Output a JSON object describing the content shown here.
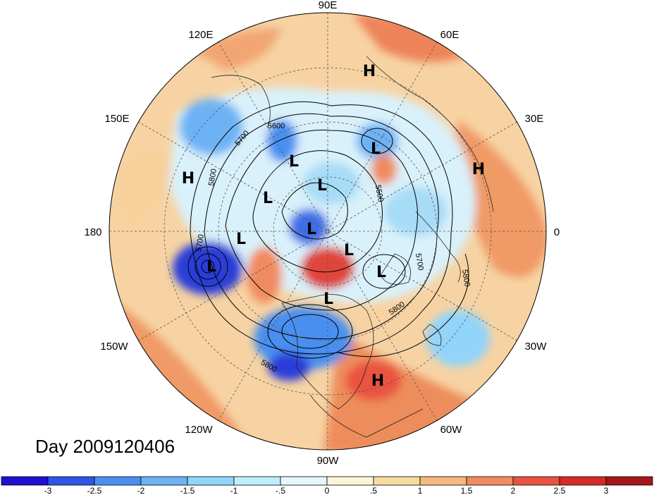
{
  "title": "Day 2009120406",
  "longitude_labels": [
    "90E",
    "60E",
    "30E",
    "0",
    "30W",
    "60W",
    "90W",
    "120W",
    "150W",
    "180",
    "150E",
    "120E"
  ],
  "pressure_centers": [
    "H",
    "H",
    "H",
    "H",
    "L",
    "L",
    "L",
    "L",
    "L",
    "L",
    "L",
    "L",
    "L",
    "L"
  ],
  "contour_labels": [
    "5600",
    "5700",
    "5800",
    "5500",
    "5700",
    "5800",
    "5800",
    "5700",
    "5800"
  ],
  "colorbar": {
    "ticks": [
      "-3",
      "-2.5",
      "-2",
      "-1.5",
      "-1",
      "-.5",
      "0",
      ".5",
      "1",
      "1.5",
      "2",
      "2.5",
      "3"
    ],
    "colors": [
      "#1f0fd2",
      "#2f55e6",
      "#4a8ff0",
      "#6cb2f5",
      "#92d4fa",
      "#bfeefb",
      "#e5f7fb",
      "#fbf4d6",
      "#f8dba1",
      "#f5b87e",
      "#f08b5f",
      "#e9533f",
      "#d52a26",
      "#a8151c"
    ]
  },
  "field_colors": {
    "deep_blue": "#2b3fe0",
    "blue": "#4f8ff0",
    "light_blue": "#a7dcf7",
    "pale": "#fbf4d6",
    "peach": "#f7c894",
    "orange": "#f09a66",
    "red": "#e0453a"
  }
}
